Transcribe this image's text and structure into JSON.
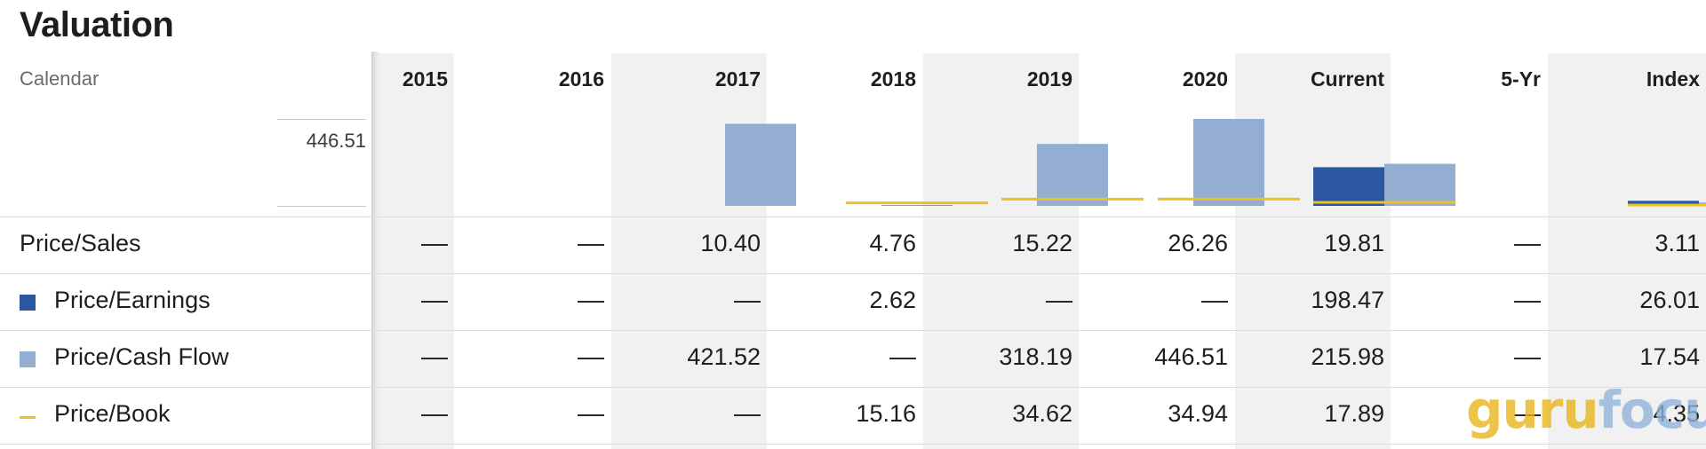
{
  "title": "Valuation",
  "calendar_label": "Calendar",
  "axis_max": "446.51",
  "columns": [
    "2015",
    "2016",
    "2017",
    "2018",
    "2019",
    "2020",
    "Current",
    "5-Yr",
    "Index"
  ],
  "rows": [
    {
      "label": "Price/Sales",
      "legend": "none",
      "values": [
        "—",
        "—",
        "10.40",
        "4.76",
        "15.22",
        "26.26",
        "19.81",
        "—",
        "3.11"
      ]
    },
    {
      "label": "Price/Earnings",
      "legend": "square",
      "color": "#2a57a0",
      "values": [
        "—",
        "—",
        "—",
        "2.62",
        "—",
        "—",
        "198.47",
        "—",
        "26.01"
      ]
    },
    {
      "label": "Price/Cash Flow",
      "legend": "square",
      "color": "#93aed1",
      "values": [
        "—",
        "—",
        "421.52",
        "—",
        "318.19",
        "446.51",
        "215.98",
        "—",
        "17.54"
      ]
    },
    {
      "label": "Price/Book",
      "legend": "line",
      "color": "#f0c020",
      "values": [
        "—",
        "—",
        "—",
        "15.16",
        "34.62",
        "34.94",
        "17.89",
        "—",
        "4.35"
      ]
    }
  ],
  "chart_data": {
    "type": "bar",
    "categories": [
      "2015",
      "2016",
      "2017",
      "2018",
      "2019",
      "2020",
      "Current",
      "5-Yr",
      "Index"
    ],
    "ylim": [
      0,
      446.51
    ],
    "series": [
      {
        "name": "Price/Earnings",
        "color": "#2a57a0",
        "values": [
          null,
          null,
          null,
          2.62,
          null,
          null,
          198.47,
          null,
          26.01
        ]
      },
      {
        "name": "Price/Cash Flow",
        "color": "#93aed1",
        "values": [
          null,
          null,
          421.52,
          null,
          318.19,
          446.51,
          215.98,
          null,
          17.54
        ]
      },
      {
        "name": "Price/Book",
        "color": "#f0c020",
        "values": [
          null,
          null,
          null,
          15.16,
          34.62,
          34.94,
          17.89,
          null,
          4.35
        ]
      }
    ]
  },
  "watermark": {
    "part1": "guru",
    "part2": "focus"
  }
}
